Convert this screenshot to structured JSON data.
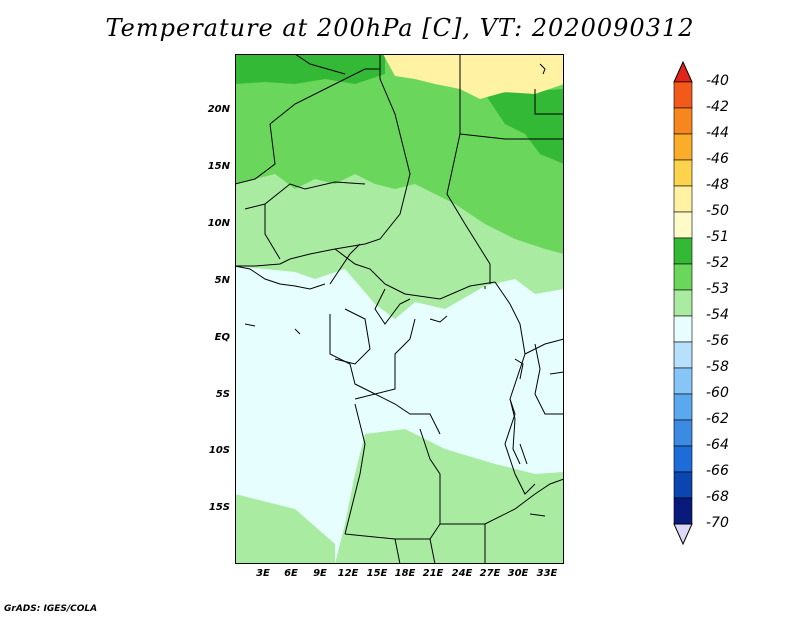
{
  "title": "Temperature at 200hPa [C], VT: 2020090312",
  "credit": "GrADS: IGES/COLA",
  "lat_ticks": [
    "20N",
    "15N",
    "10N",
    "5N",
    "EQ",
    "5S",
    "10S",
    "15S"
  ],
  "lon_ticks": [
    "3E",
    "6E",
    "9E",
    "12E",
    "15E",
    "18E",
    "21E",
    "24E",
    "27E",
    "30E",
    "33E"
  ],
  "colorbar": {
    "labels": [
      "-40",
      "-42",
      "-44",
      "-46",
      "-48",
      "-50",
      "-51",
      "-52",
      "-53",
      "-54",
      "-56",
      "-58",
      "-60",
      "-62",
      "-64",
      "-66",
      "-68",
      "-70"
    ],
    "colors": [
      "#e2231c",
      "#f25a1b",
      "#f7861f",
      "#fbad29",
      "#fbd34c",
      "#fff2a2",
      "#fffbc8",
      "#33b935",
      "#6ad65b",
      "#a9eba1",
      "#e6fefd",
      "#b6e0fb",
      "#86c5f6",
      "#5aa9ee",
      "#3c8ae2",
      "#1d6cd8",
      "#0b46b0",
      "#0a1a7c"
    ],
    "top_arrow_color": "#e2231c",
    "bottom_arrow_color": "#ddd8f7"
  },
  "map_colors": {
    "land_52": "#33b935",
    "land_53": "#6ad65b",
    "land_54": "#a9eba1",
    "land_56": "#e6fefd",
    "land_51": "#fff2a2"
  }
}
